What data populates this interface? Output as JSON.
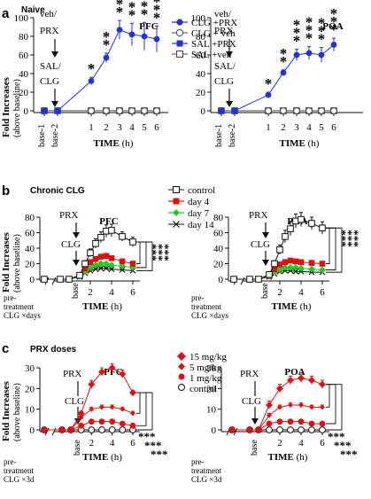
{
  "panels": [
    {
      "letter": "a",
      "subtitle": "Naive"
    },
    {
      "letter": "b",
      "subtitle": "Chronic CLG"
    },
    {
      "letter": "c",
      "subtitle": "PRX doses"
    }
  ],
  "labels": {
    "ylabel_main": "Fold Increases",
    "ylabel_sub": "(above baseline)",
    "xlabel": "TIME",
    "xunit": "(h)",
    "veh": "veh/",
    "prx": "PRX",
    "sal": "SAL/",
    "clg": "CLG",
    "pre": "pre-",
    "treatment": "treatment",
    "clg_days": "CLG ×days",
    "clg_3d": "CLG ×3d",
    "base": "base",
    "base1": "base-1",
    "base2": "base-2",
    "sig": "***"
  },
  "legend_a": [
    "CLG +PRX",
    "CLG + veh",
    "SAL +PRX",
    "SAL +veh"
  ],
  "legend_b": [
    "control",
    "day 4",
    "day 7",
    "day 14"
  ],
  "legend_c": [
    "15 mg/kg",
    "5 mg/kg",
    "1 mg/kg",
    "control"
  ],
  "colors": {
    "blue": "#2233dd",
    "red": "#e01010",
    "green": "#22cc22",
    "black": "#111111",
    "gray": "#777777"
  },
  "chart_data": [
    {
      "id": "a-PFC",
      "type": "line",
      "title": "PFC",
      "xlabel": "TIME (h)",
      "ylabel": "Fold Increases (above baseline)",
      "x": [
        "base-1",
        "base-2",
        1,
        2,
        3,
        4,
        5,
        6
      ],
      "ylim": [
        0,
        100
      ],
      "yticks": [
        0,
        20,
        40,
        60,
        80,
        100
      ],
      "series": [
        {
          "name": "CLG +PRX",
          "values": [
            0,
            0,
            32,
            57,
            87,
            82,
            80,
            77
          ],
          "err": [
            0,
            0,
            4,
            5,
            10,
            12,
            15,
            14
          ]
        },
        {
          "name": "CLG + veh",
          "values": [
            0,
            0,
            0,
            0,
            0,
            0,
            0,
            0
          ]
        },
        {
          "name": "SAL +PRX",
          "values": [
            0,
            0,
            0,
            0,
            0,
            0,
            0,
            0
          ]
        },
        {
          "name": "SAL +veh",
          "values": [
            0,
            0,
            0,
            0,
            0,
            0,
            0,
            0
          ]
        }
      ],
      "significance": [
        "*",
        "**",
        "***",
        "***",
        "***",
        "***"
      ]
    },
    {
      "id": "a-POA",
      "type": "line",
      "title": "POA",
      "xlabel": "TIME (h)",
      "x": [
        "base-1",
        "base-2",
        1,
        2,
        3,
        4,
        5,
        6
      ],
      "ylim": [
        0,
        100
      ],
      "yticks": [
        0,
        20,
        40,
        60,
        80,
        100
      ],
      "series": [
        {
          "name": "CLG +PRX",
          "values": [
            0,
            0,
            17,
            41,
            60,
            62,
            60,
            71
          ],
          "err": [
            0,
            0,
            3,
            3,
            6,
            7,
            8,
            7
          ]
        },
        {
          "name": "CLG + veh",
          "values": [
            0,
            0,
            0,
            0,
            0,
            0,
            0,
            0
          ]
        },
        {
          "name": "SAL +PRX",
          "values": [
            0,
            0,
            0,
            0,
            0,
            0,
            0,
            0
          ]
        },
        {
          "name": "SAL +veh",
          "values": [
            0,
            0,
            0,
            0,
            0,
            0,
            0,
            0
          ]
        }
      ],
      "significance": [
        "*",
        "**",
        "***",
        "***",
        "***",
        "***"
      ]
    },
    {
      "id": "b-PFC",
      "type": "line",
      "title": "PFC",
      "xlabel": "TIME (h)",
      "ylabel": "Fold Increases (above baseline)",
      "x": [
        -2,
        -1,
        0,
        1,
        1.5,
        2,
        2.5,
        3,
        3.5,
        4,
        5,
        6
      ],
      "ylim": [
        0,
        80
      ],
      "yticks": [
        0,
        20,
        40,
        60,
        80
      ],
      "series": [
        {
          "name": "control",
          "values": [
            0,
            0,
            0,
            5,
            20,
            34,
            46,
            54,
            62,
            63,
            55,
            48
          ],
          "err": [
            0,
            0,
            0,
            2,
            4,
            5,
            6,
            7,
            8,
            8,
            6,
            6
          ]
        },
        {
          "name": "day 4",
          "values": [
            0,
            0,
            0,
            5,
            14,
            22,
            26,
            29,
            30,
            27,
            23,
            20
          ],
          "err": [
            0,
            0,
            0,
            1,
            2,
            2,
            3,
            3,
            3,
            3,
            3,
            2
          ]
        },
        {
          "name": "day 7",
          "values": [
            0,
            0,
            0,
            4,
            10,
            15,
            18,
            20,
            20,
            18,
            17,
            15
          ],
          "err": [
            0,
            0,
            0,
            1,
            1,
            2,
            2,
            2,
            2,
            2,
            2,
            2
          ]
        },
        {
          "name": "day 14",
          "values": [
            0,
            0,
            0,
            3,
            8,
            11,
            13,
            14,
            14,
            13,
            12,
            11
          ],
          "err": [
            0,
            0,
            0,
            1,
            1,
            1,
            1,
            1,
            1,
            1,
            1,
            1
          ]
        }
      ],
      "significance": [
        "***",
        "***",
        "***"
      ]
    },
    {
      "id": "b-POA",
      "type": "line",
      "title": "POA",
      "xlabel": "TIME (h)",
      "x": [
        -2,
        -1,
        0,
        1,
        1.5,
        2,
        2.5,
        3,
        3.5,
        4,
        5,
        6
      ],
      "ylim": [
        0,
        80
      ],
      "yticks": [
        0,
        20,
        40,
        60,
        80
      ],
      "series": [
        {
          "name": "control",
          "values": [
            0,
            0,
            0,
            6,
            20,
            38,
            55,
            65,
            75,
            77,
            72,
            66
          ],
          "err": [
            0,
            0,
            0,
            2,
            4,
            6,
            8,
            9,
            9,
            9,
            8,
            8
          ]
        },
        {
          "name": "day 4",
          "values": [
            0,
            0,
            0,
            5,
            13,
            19,
            22,
            24,
            23,
            22,
            21,
            20
          ],
          "err": [
            0,
            0,
            0,
            1,
            2,
            2,
            2,
            2,
            2,
            2,
            2,
            2
          ]
        },
        {
          "name": "day 7",
          "values": [
            0,
            0,
            0,
            4,
            9,
            13,
            15,
            15,
            15,
            14,
            13,
            12
          ],
          "err": [
            0,
            0,
            0,
            1,
            1,
            1,
            1,
            1,
            1,
            1,
            1,
            1
          ]
        },
        {
          "name": "day 14",
          "values": [
            0,
            0,
            0,
            3,
            7,
            10,
            11,
            11,
            10,
            10,
            9,
            9
          ],
          "err": [
            0,
            0,
            0,
            1,
            1,
            1,
            1,
            1,
            1,
            1,
            1,
            1
          ]
        }
      ],
      "significance": [
        "***",
        "***",
        "***"
      ]
    },
    {
      "id": "c-PFC",
      "type": "line",
      "title": "PFC",
      "xlabel": "TIME (h)",
      "ylabel": "Fold Increases (above baseline)",
      "x": [
        -2,
        -1,
        0,
        1,
        2,
        3,
        4,
        5,
        6
      ],
      "ylim": [
        0,
        30
      ],
      "yticks": [
        0,
        10,
        20,
        30
      ],
      "series": [
        {
          "name": "15 mg/kg",
          "values": [
            0,
            0,
            0,
            8,
            22,
            28,
            30,
            27,
            18
          ],
          "err": [
            0,
            0,
            0,
            1,
            2,
            2,
            2,
            2,
            1
          ]
        },
        {
          "name": "5 mg/kg",
          "values": [
            0,
            0,
            0,
            6,
            10,
            11,
            11,
            10,
            8
          ],
          "err": [
            0,
            0,
            0,
            1,
            1,
            1,
            1,
            1,
            1
          ]
        },
        {
          "name": "1 mg/kg",
          "values": [
            0,
            0,
            0,
            2,
            4,
            4,
            4,
            3,
            2
          ],
          "err": [
            0,
            0,
            0,
            0.5,
            0.5,
            0.5,
            0.5,
            0.5,
            0.5
          ]
        },
        {
          "name": "control",
          "values": [
            0,
            0,
            0,
            0,
            0,
            0,
            0,
            0,
            0
          ]
        }
      ],
      "significance": [
        "***",
        "***",
        "***"
      ]
    },
    {
      "id": "c-POA",
      "type": "line",
      "title": "POA",
      "xlabel": "TIME (h)",
      "x": [
        -2,
        -1,
        0,
        1,
        2,
        3,
        4,
        5,
        6
      ],
      "ylim": [
        0,
        30
      ],
      "yticks": [
        0,
        10,
        20,
        30
      ],
      "series": [
        {
          "name": "15 mg/kg",
          "values": [
            0,
            0,
            0,
            12,
            20,
            24,
            25,
            24,
            22
          ],
          "err": [
            0,
            0,
            0,
            2,
            2,
            2,
            2,
            2,
            2
          ]
        },
        {
          "name": "5 mg/kg",
          "values": [
            0,
            0,
            0,
            7,
            11,
            12,
            12,
            11,
            11
          ],
          "err": [
            0,
            0,
            0,
            1,
            1,
            1,
            1,
            1,
            1
          ]
        },
        {
          "name": "1 mg/kg",
          "values": [
            0,
            0,
            0,
            3,
            4,
            4,
            4,
            3,
            3
          ],
          "err": [
            0,
            0,
            0,
            0.5,
            0.5,
            0.5,
            0.5,
            0.5,
            0.5
          ]
        },
        {
          "name": "control",
          "values": [
            0,
            0,
            0,
            0,
            0,
            0,
            0,
            0,
            0
          ]
        }
      ],
      "significance": [
        "***",
        "***",
        "***"
      ]
    }
  ]
}
